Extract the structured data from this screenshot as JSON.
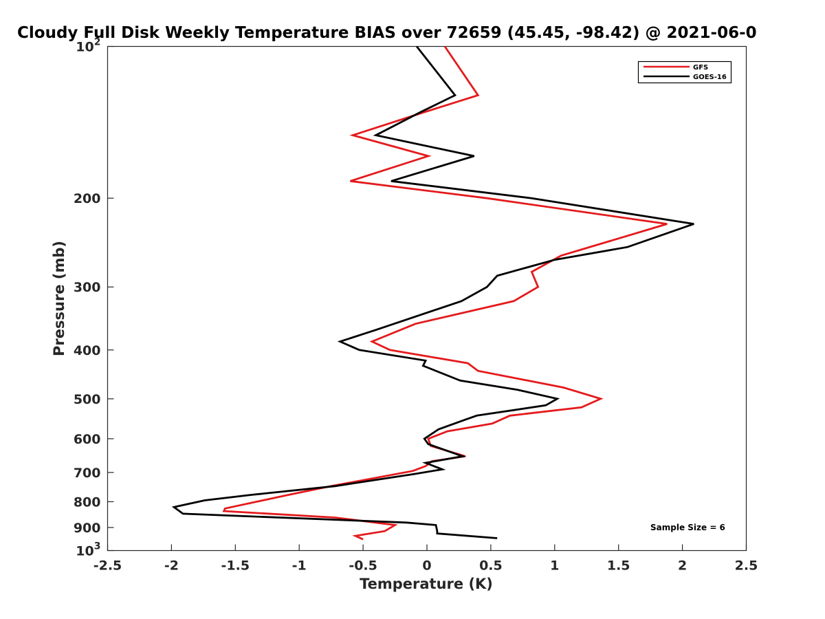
{
  "chart_data": {
    "type": "line",
    "title": "Cloudy Full Disk Weekly Temperature BIAS over 72659 (45.45, -98.42) @ 2021-06-0",
    "xlabel": "Temperature (K)",
    "ylabel": "Pressure (mb)",
    "xlim": [
      -2.5,
      2.5
    ],
    "ylim": [
      100,
      1000
    ],
    "y_scale": "log",
    "y_reversed": true,
    "x_ticks": [
      "-2.5",
      "-2",
      "-1.5",
      "-1",
      "-0.5",
      "0",
      "0.5",
      "1",
      "1.5",
      "2",
      "2.5"
    ],
    "x_tick_values": [
      -2.5,
      -2,
      -1.5,
      -1,
      -0.5,
      0,
      0.5,
      1,
      1.5,
      2,
      2.5
    ],
    "y_ticks": [
      {
        "value": 100,
        "base": "10",
        "exp": "2"
      },
      {
        "value": 200,
        "label": "200"
      },
      {
        "value": 300,
        "label": "300"
      },
      {
        "value": 400,
        "label": "400"
      },
      {
        "value": 500,
        "label": "500"
      },
      {
        "value": 600,
        "label": "600"
      },
      {
        "value": 700,
        "label": "700"
      },
      {
        "value": 800,
        "label": "800"
      },
      {
        "value": 900,
        "label": "900"
      },
      {
        "value": 1000,
        "base": "10",
        "exp": "3"
      }
    ],
    "grid": false,
    "legend_position": "top-right",
    "annotation": "Sample Size = 6",
    "series": [
      {
        "name": "GFS",
        "color": "#e41a1c",
        "points": [
          [
            0.14,
            100
          ],
          [
            0.4,
            125
          ],
          [
            -0.02,
            135
          ],
          [
            -0.58,
            150
          ],
          [
            0.01,
            165
          ],
          [
            -0.6,
            185
          ],
          [
            0.47,
            200
          ],
          [
            1.88,
            225
          ],
          [
            1.05,
            260
          ],
          [
            0.82,
            280
          ],
          [
            0.87,
            300
          ],
          [
            0.68,
            320
          ],
          [
            -0.09,
            355
          ],
          [
            -0.43,
            385
          ],
          [
            -0.29,
            400
          ],
          [
            0.32,
            425
          ],
          [
            0.4,
            440
          ],
          [
            1.07,
            475
          ],
          [
            1.36,
            500
          ],
          [
            1.21,
            520
          ],
          [
            0.65,
            540
          ],
          [
            0.51,
            560
          ],
          [
            0.16,
            580
          ],
          [
            0.01,
            600
          ],
          [
            0.03,
            620
          ],
          [
            0.3,
            650
          ],
          [
            0.04,
            665
          ],
          [
            -0.01,
            680
          ],
          [
            -0.11,
            695
          ],
          [
            -0.75,
            745
          ],
          [
            -1.08,
            775
          ],
          [
            -1.58,
            825
          ],
          [
            -1.59,
            835
          ],
          [
            -0.72,
            860
          ],
          [
            -0.25,
            890
          ],
          [
            -0.33,
            915
          ],
          [
            -0.56,
            935
          ],
          [
            -0.5,
            950
          ]
        ]
      },
      {
        "name": "GOES-16",
        "color": "#000000",
        "points": [
          [
            -0.08,
            100
          ],
          [
            0.22,
            125
          ],
          [
            -0.05,
            135
          ],
          [
            -0.4,
            150
          ],
          [
            0.37,
            165
          ],
          [
            -0.28,
            185
          ],
          [
            0.82,
            200
          ],
          [
            2.09,
            225
          ],
          [
            1.57,
            250
          ],
          [
            1.0,
            265
          ],
          [
            0.55,
            285
          ],
          [
            0.47,
            300
          ],
          [
            0.27,
            320
          ],
          [
            -0.4,
            365
          ],
          [
            -0.68,
            385
          ],
          [
            -0.53,
            400
          ],
          [
            -0.01,
            420
          ],
          [
            -0.03,
            430
          ],
          [
            0.26,
            460
          ],
          [
            0.71,
            480
          ],
          [
            1.02,
            500
          ],
          [
            0.93,
            515
          ],
          [
            0.39,
            540
          ],
          [
            0.3,
            550
          ],
          [
            0.09,
            575
          ],
          [
            -0.02,
            600
          ],
          [
            0.01,
            615
          ],
          [
            0.28,
            650
          ],
          [
            -0.01,
            670
          ],
          [
            0.12,
            690
          ],
          [
            -0.1,
            705
          ],
          [
            -0.72,
            745
          ],
          [
            -1.37,
            775
          ],
          [
            -1.74,
            795
          ],
          [
            -1.98,
            820
          ],
          [
            -1.91,
            845
          ],
          [
            -0.16,
            880
          ],
          [
            0.07,
            890
          ],
          [
            0.08,
            915
          ],
          [
            0.08,
            925
          ],
          [
            0.55,
            945
          ]
        ]
      }
    ]
  }
}
